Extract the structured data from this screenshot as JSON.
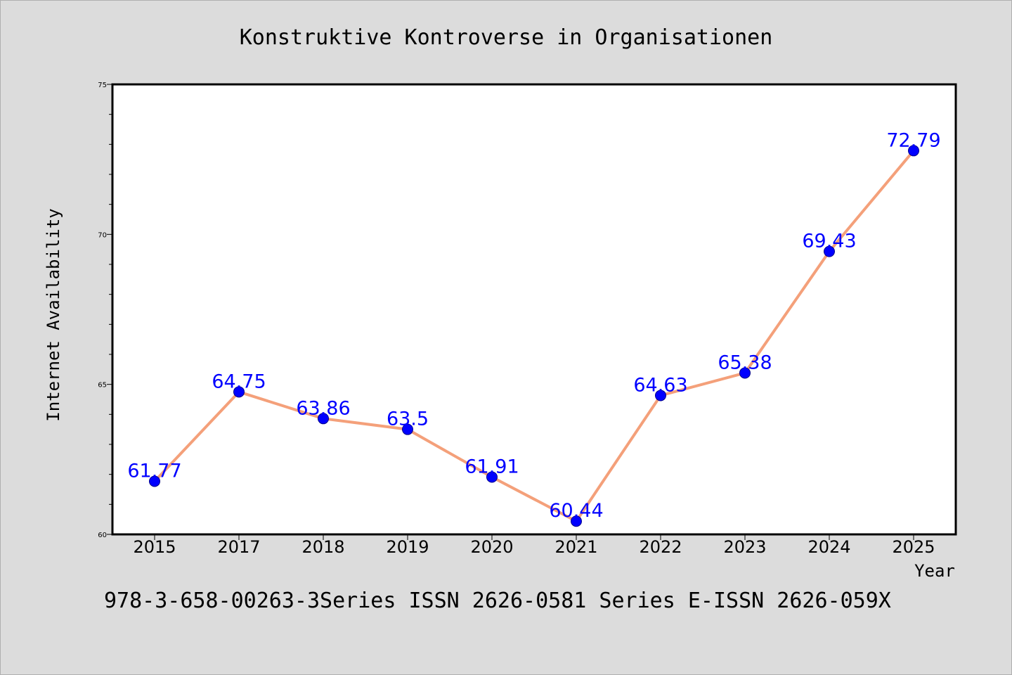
{
  "chart_data": {
    "type": "line",
    "title": "Konstruktive Kontroverse in Organisationen",
    "xlabel": "Year",
    "ylabel": "Internet Availability",
    "categories": [
      "2015",
      "2017",
      "2018",
      "2019",
      "2020",
      "2021",
      "2022",
      "2023",
      "2024",
      "2025"
    ],
    "series": [
      {
        "values": [
          61.77,
          64.75,
          63.86,
          63.5,
          61.91,
          60.44,
          64.63,
          65.38,
          69.43,
          72.79
        ]
      }
    ],
    "data_labels": [
      "61.77",
      "64.75",
      "63.86",
      "63.5",
      "61.91",
      "60.44",
      "64.63",
      "65.38",
      "69.43",
      "72.79"
    ],
    "ylim": [
      60,
      75
    ],
    "yticks": [
      60,
      65,
      70,
      75
    ],
    "ytick_labels": [
      "60",
      "65",
      "70",
      "75"
    ],
    "grid": false,
    "line_color": "#f4a07a",
    "marker_color": "#0000ff",
    "label_color": "#0000ff",
    "background_color": "#dcdcdc"
  },
  "footer": "978-3-658-00263-3Series ISSN 2626-0581 Series E-ISSN 2626-059X"
}
